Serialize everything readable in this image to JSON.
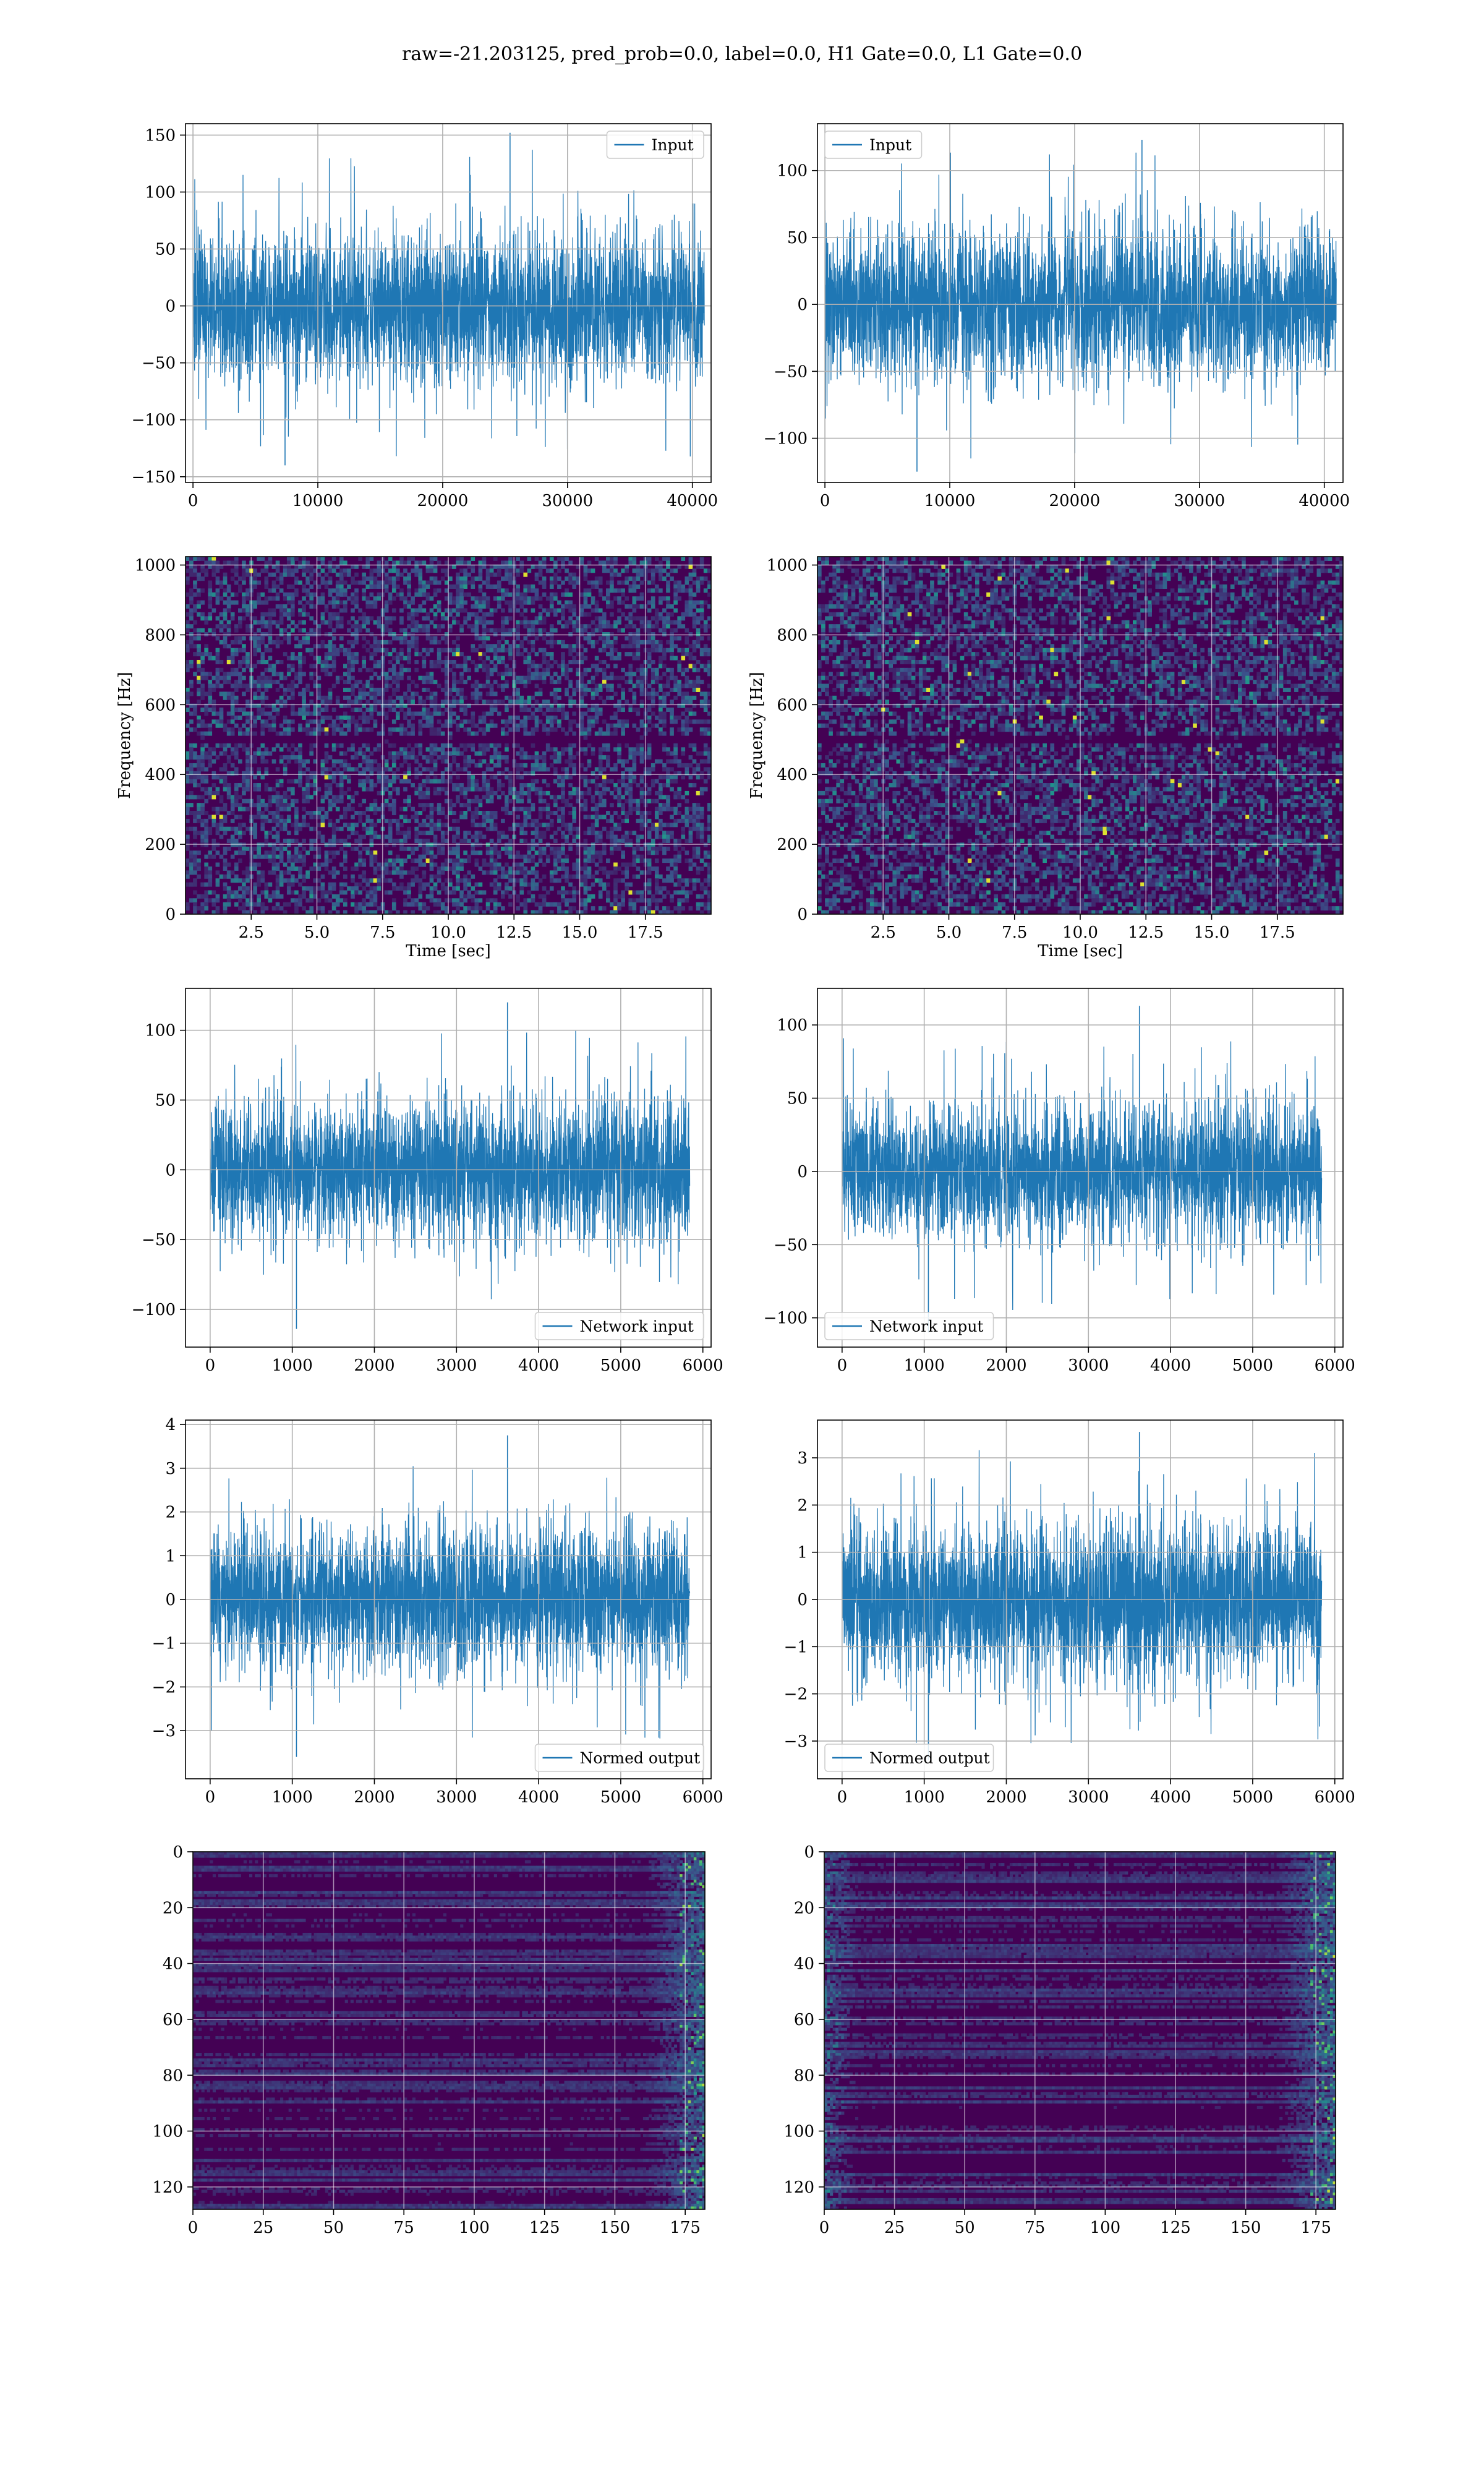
{
  "figure": {
    "suptitle": "raw=-21.203125, pred_prob=0.0, label=0.0, H1 Gate=0.0, L1 Gate=0.0"
  },
  "colors": {
    "line": "#1f77b4",
    "grid": "#b0b0b0",
    "viridis_low": "#440154",
    "viridis_high": "#fde725"
  },
  "chart_data": [
    {
      "id": "input-left",
      "row": 0,
      "col": 0,
      "type": "line",
      "series": [
        {
          "name": "Input",
          "values": "strain time series (~41000 samples, visually dense)"
        }
      ],
      "legend": "upper right",
      "grid": true,
      "xlim": [
        -600,
        41500
      ],
      "ylim": [
        -155,
        160
      ],
      "xticks": [
        0,
        10000,
        20000,
        30000,
        40000
      ],
      "yticks": [
        -150,
        -100,
        -50,
        0,
        50,
        100,
        150
      ],
      "xticklabels": [
        "0",
        "10000",
        "20000",
        "30000",
        "40000"
      ],
      "yticklabels": [
        "−150",
        "−100",
        "−50",
        "0",
        "50",
        "100",
        "150"
      ],
      "x_range": [
        0,
        40960
      ],
      "typical_band": [
        -80,
        80
      ],
      "max_peak": 152,
      "min_peak": -140
    },
    {
      "id": "input-right",
      "row": 0,
      "col": 1,
      "type": "line",
      "series": [
        {
          "name": "Input",
          "values": "strain time series (~41000 samples, visually dense)"
        }
      ],
      "legend": "upper left",
      "grid": true,
      "xlim": [
        -600,
        41500
      ],
      "ylim": [
        -133,
        135
      ],
      "xticks": [
        0,
        10000,
        20000,
        30000,
        40000
      ],
      "yticks": [
        -100,
        -50,
        0,
        50,
        100
      ],
      "xticklabels": [
        "0",
        "10000",
        "20000",
        "30000",
        "40000"
      ],
      "yticklabels": [
        "−100",
        "−50",
        "0",
        "50",
        "100"
      ],
      "x_range": [
        0,
        40960
      ],
      "typical_band": [
        -70,
        70
      ],
      "max_peak": 123,
      "min_peak": -125
    },
    {
      "id": "spec-left",
      "row": 1,
      "col": 0,
      "type": "heatmap",
      "xlabel": "Time [sec]",
      "ylabel": "Frequency [Hz]",
      "grid": true,
      "xlim": [
        0,
        20
      ],
      "ylim": [
        0,
        1024
      ],
      "xticks": [
        2.5,
        5,
        7.5,
        10,
        12.5,
        15,
        17.5
      ],
      "yticks": [
        0,
        200,
        400,
        600,
        800,
        1000
      ],
      "xticklabels": [
        "2.5",
        "5.0",
        "7.5",
        "10.0",
        "12.5",
        "15.0",
        "17.5"
      ],
      "yticklabels": [
        "0",
        "200",
        "400",
        "600",
        "800",
        "1000"
      ],
      "colormap": "viridis",
      "content": "noise spectrogram, dark horizontal band near 500 Hz"
    },
    {
      "id": "spec-right",
      "row": 1,
      "col": 1,
      "type": "heatmap",
      "xlabel": "Time [sec]",
      "ylabel": "Frequency [Hz]",
      "grid": true,
      "xlim": [
        0,
        20
      ],
      "ylim": [
        0,
        1024
      ],
      "xticks": [
        2.5,
        5,
        7.5,
        10,
        12.5,
        15,
        17.5
      ],
      "yticks": [
        0,
        200,
        400,
        600,
        800,
        1000
      ],
      "xticklabels": [
        "2.5",
        "5.0",
        "7.5",
        "10.0",
        "12.5",
        "15.0",
        "17.5"
      ],
      "yticklabels": [
        "0",
        "200",
        "400",
        "600",
        "800",
        "1000"
      ],
      "colormap": "viridis",
      "content": "noise spectrogram, dark horizontal band near 500 Hz"
    },
    {
      "id": "netin-left",
      "row": 2,
      "col": 0,
      "type": "line",
      "series": [
        {
          "name": "Network input",
          "values": "downsampled series (~5800 samples)"
        }
      ],
      "legend": "lower right",
      "grid": true,
      "xlim": [
        -300,
        6100
      ],
      "ylim": [
        -127,
        130
      ],
      "xticks": [
        0,
        1000,
        2000,
        3000,
        4000,
        5000,
        6000
      ],
      "yticks": [
        -100,
        -50,
        0,
        50,
        100
      ],
      "xticklabels": [
        "0",
        "1000",
        "2000",
        "3000",
        "4000",
        "5000",
        "6000"
      ],
      "yticklabels": [
        "−100",
        "−50",
        "0",
        "50",
        "100"
      ],
      "x_range": [
        0,
        5840
      ],
      "typical_band": [
        -60,
        60
      ],
      "max_peak": 120,
      "min_peak": -114
    },
    {
      "id": "netin-right",
      "row": 2,
      "col": 1,
      "type": "line",
      "series": [
        {
          "name": "Network input",
          "values": "downsampled series (~5800 samples)"
        }
      ],
      "legend": "lower left",
      "grid": true,
      "xlim": [
        -300,
        6100
      ],
      "ylim": [
        -120,
        125
      ],
      "xticks": [
        0,
        1000,
        2000,
        3000,
        4000,
        5000,
        6000
      ],
      "yticks": [
        -100,
        -50,
        0,
        50,
        100
      ],
      "xticklabels": [
        "0",
        "1000",
        "2000",
        "3000",
        "4000",
        "5000",
        "6000"
      ],
      "yticklabels": [
        "−100",
        "−50",
        "0",
        "50",
        "100"
      ],
      "x_range": [
        0,
        5840
      ],
      "typical_band": [
        -55,
        55
      ],
      "max_peak": 113,
      "min_peak": -110
    },
    {
      "id": "normed-left",
      "row": 3,
      "col": 0,
      "type": "line",
      "series": [
        {
          "name": "Normed output",
          "values": "normalized series (~5800 samples)"
        }
      ],
      "legend": "lower right",
      "grid": true,
      "xlim": [
        -300,
        6100
      ],
      "ylim": [
        -4.1,
        4.1
      ],
      "xticks": [
        0,
        1000,
        2000,
        3000,
        4000,
        5000,
        6000
      ],
      "yticks": [
        -3,
        -2,
        -1,
        0,
        1,
        2,
        3,
        4
      ],
      "xticklabels": [
        "0",
        "1000",
        "2000",
        "3000",
        "4000",
        "5000",
        "6000"
      ],
      "yticklabels": [
        "−3",
        "−2",
        "−1",
        "0",
        "1",
        "2",
        "3",
        "4"
      ],
      "x_range": [
        0,
        5840
      ],
      "typical_band": [
        -2,
        2
      ],
      "max_peak": 3.75,
      "min_peak": -3.6
    },
    {
      "id": "normed-right",
      "row": 3,
      "col": 1,
      "type": "line",
      "series": [
        {
          "name": "Normed output",
          "values": "normalized series (~5800 samples)"
        }
      ],
      "legend": "lower left",
      "grid": true,
      "xlim": [
        -300,
        6100
      ],
      "ylim": [
        -3.8,
        3.8
      ],
      "xticks": [
        0,
        1000,
        2000,
        3000,
        4000,
        5000,
        6000
      ],
      "yticks": [
        -3,
        -2,
        -1,
        0,
        1,
        2,
        3
      ],
      "xticklabels": [
        "0",
        "1000",
        "2000",
        "3000",
        "4000",
        "5000",
        "6000"
      ],
      "yticklabels": [
        "−3",
        "−2",
        "−1",
        "0",
        "1",
        "2",
        "3"
      ],
      "x_range": [
        0,
        5840
      ],
      "typical_band": [
        -2,
        2
      ],
      "max_peak": 3.55,
      "min_peak": -3.4
    },
    {
      "id": "feat-left",
      "row": 4,
      "col": 0,
      "type": "heatmap",
      "grid": true,
      "xlim": [
        0,
        182
      ],
      "ylim": [
        128,
        0
      ],
      "xticks": [
        0,
        25,
        50,
        75,
        100,
        125,
        150,
        175
      ],
      "yticks": [
        0,
        20,
        40,
        60,
        80,
        100,
        120
      ],
      "xticklabels": [
        "0",
        "25",
        "50",
        "75",
        "100",
        "125",
        "150",
        "175"
      ],
      "yticklabels": [
        "0",
        "20",
        "40",
        "60",
        "80",
        "100",
        "120"
      ],
      "colormap": "viridis",
      "content": "128x182 feature map, horizontal streaks, bright at right edge"
    },
    {
      "id": "feat-right",
      "row": 4,
      "col": 1,
      "type": "heatmap",
      "grid": true,
      "xlim": [
        0,
        182
      ],
      "ylim": [
        128,
        0
      ],
      "xticks": [
        0,
        25,
        50,
        75,
        100,
        125,
        150,
        175
      ],
      "yticks": [
        0,
        20,
        40,
        60,
        80,
        100,
        120
      ],
      "xticklabels": [
        "0",
        "25",
        "50",
        "75",
        "100",
        "125",
        "150",
        "175"
      ],
      "yticklabels": [
        "0",
        "20",
        "40",
        "60",
        "80",
        "100",
        "120"
      ],
      "colormap": "viridis",
      "content": "128x182 feature map, bright streaks at both edges"
    }
  ]
}
